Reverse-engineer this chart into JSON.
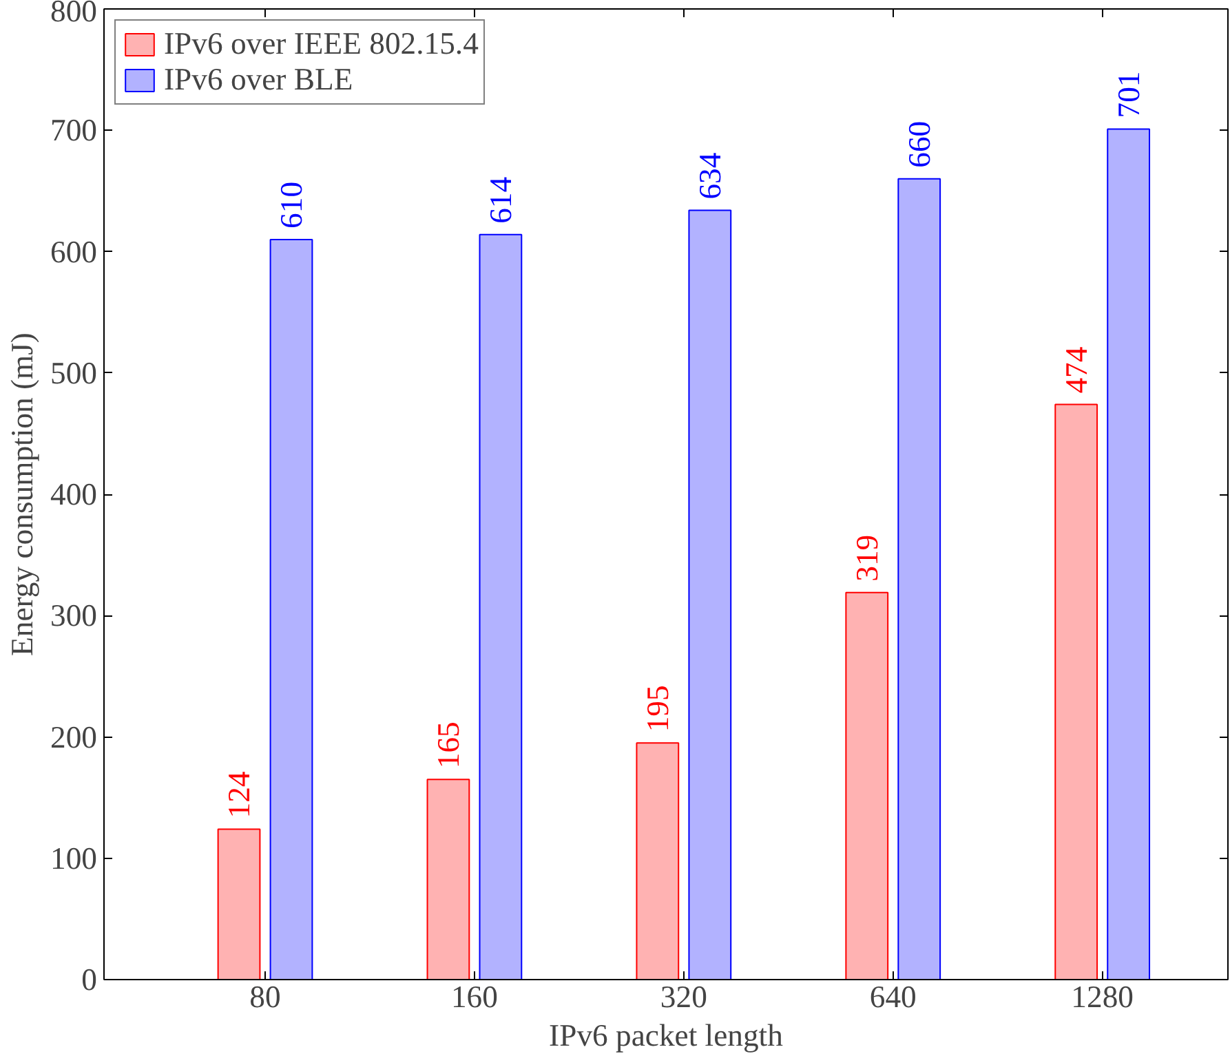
{
  "chart_data": {
    "type": "bar",
    "xlabel": "IPv6 packet length",
    "ylabel": "Energy consumption (mJ)",
    "categories": [
      "80",
      "160",
      "320",
      "640",
      "1280"
    ],
    "series": [
      {
        "name": "IPv6 over IEEE 802.15.4",
        "color": "#ff0000",
        "values": [
          124,
          165,
          195,
          319,
          474
        ]
      },
      {
        "name": "IPv6 over BLE",
        "color": "#0000ff",
        "values": [
          610,
          614,
          634,
          660,
          701
        ]
      }
    ],
    "ylim": [
      0,
      800
    ],
    "yticks": [
      0,
      100,
      200,
      300,
      400,
      500,
      600,
      700,
      800
    ],
    "data_labels": true,
    "legend": "top left",
    "grid": false
  }
}
